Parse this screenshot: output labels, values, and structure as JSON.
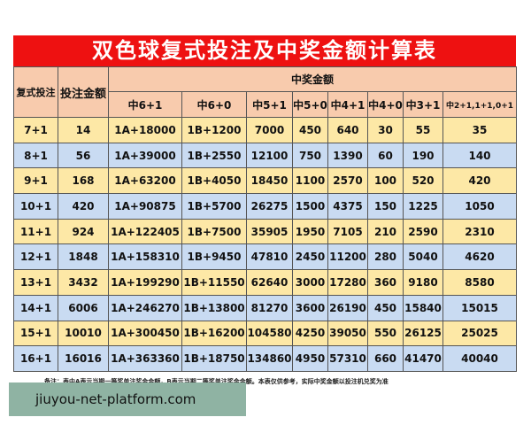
{
  "title": "双色球复式投注及中奖金额计算表",
  "headers": {
    "bet": "复式投注",
    "amount": "投注金额",
    "prize_group": "中奖金额",
    "prizes": [
      "中6+1",
      "中6+0",
      "中5+1",
      "中5+0",
      "中4+1",
      "中4+0",
      "中3+1",
      "中2+1,1+1,0+1"
    ]
  },
  "rows": [
    [
      "7+1",
      "14",
      "1A+18000",
      "1B+1200",
      "7000",
      "450",
      "640",
      "30",
      "55",
      "35"
    ],
    [
      "8+1",
      "56",
      "1A+39000",
      "1B+2550",
      "12100",
      "750",
      "1390",
      "60",
      "190",
      "140"
    ],
    [
      "9+1",
      "168",
      "1A+63200",
      "1B+4050",
      "18450",
      "1100",
      "2570",
      "100",
      "520",
      "420"
    ],
    [
      "10+1",
      "420",
      "1A+90875",
      "1B+5700",
      "26275",
      "1500",
      "4375",
      "150",
      "1225",
      "1050"
    ],
    [
      "11+1",
      "924",
      "1A+122405",
      "1B+7500",
      "35905",
      "1950",
      "7105",
      "210",
      "2590",
      "2310"
    ],
    [
      "12+1",
      "1848",
      "1A+158310",
      "1B+9450",
      "47810",
      "2450",
      "11200",
      "280",
      "5040",
      "4620"
    ],
    [
      "13+1",
      "3432",
      "1A+199290",
      "1B+11550",
      "62640",
      "3000",
      "17280",
      "360",
      "9180",
      "8580"
    ],
    [
      "14+1",
      "6006",
      "1A+246270",
      "1B+13800",
      "81270",
      "3600",
      "26190",
      "450",
      "15840",
      "15015"
    ],
    [
      "15+1",
      "10010",
      "1A+300450",
      "1B+16200",
      "104580",
      "4250",
      "39050",
      "550",
      "26125",
      "25025"
    ],
    [
      "16+1",
      "16016",
      "1A+363360",
      "1B+18750",
      "134860",
      "4950",
      "57310",
      "660",
      "41470",
      "40040"
    ]
  ],
  "note": "备注：表中A表示当期一等奖单注奖金金额，B表示当期二等奖单注奖金金额。本表仅供参考，实际中奖金额以投注机兑奖为准",
  "watermark": "jiuyou-net-platform.com",
  "colors": {
    "title_bg": "#ee1111",
    "header_bg": "#f8cbad",
    "row_yellow": "#fde8a6",
    "row_blue": "#c9dbf2",
    "watermark_bg": "#8fb3a3"
  }
}
